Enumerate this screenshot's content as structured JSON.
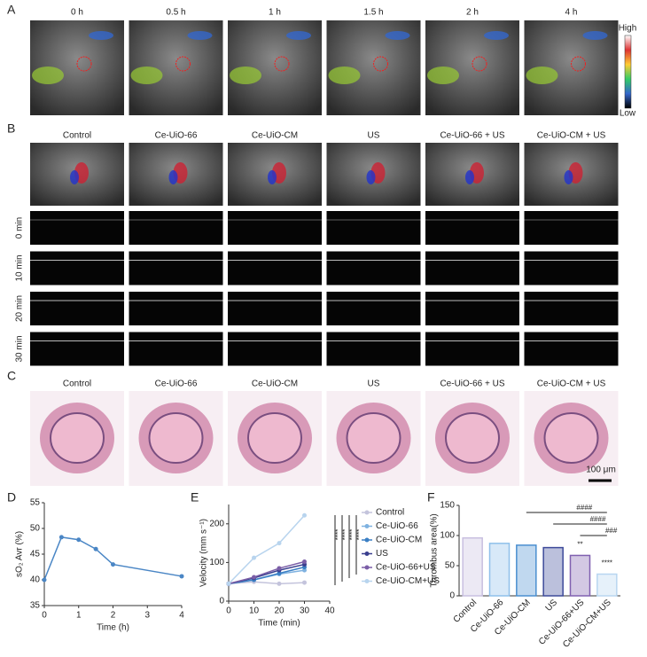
{
  "panels": {
    "a": {
      "label": "A",
      "times": [
        "0 h",
        "0.5 h",
        "1 h",
        "1.5 h",
        "2 h",
        "4 h"
      ],
      "colorbar_high": "High",
      "colorbar_low": "Low"
    },
    "b": {
      "label": "B",
      "groups": [
        "Control",
        "Ce-UiO-66",
        "Ce-UiO-CM",
        "US",
        "Ce-UiO-66 + US",
        "Ce-UiO-CM + US"
      ],
      "rows": [
        "0 min",
        "10 min",
        "20 min",
        "30 min"
      ]
    },
    "c": {
      "label": "C",
      "groups": [
        "Control",
        "Ce-UiO-66",
        "Ce-UiO-CM",
        "US",
        "Ce-UiO-66 + US",
        "Ce-UiO-CM + US"
      ],
      "scale_bar": "100 μm"
    },
    "d": {
      "label": "D"
    },
    "e": {
      "label": "E"
    },
    "f": {
      "label": "F"
    }
  },
  "chart_data": [
    {
      "type": "line",
      "ylabel": "sO₂ Avr (%)",
      "xlabel": "Time (h)",
      "x": [
        0,
        0.5,
        1,
        1.5,
        2,
        4
      ],
      "values": [
        40,
        48.3,
        47.8,
        46,
        43,
        40.7
      ],
      "color": "#4a86c5",
      "xlim": [
        0,
        4
      ],
      "xticks": [
        0,
        1,
        2,
        3,
        4
      ],
      "ylim": [
        35,
        55
      ],
      "yticks": [
        35,
        40,
        45,
        50,
        55
      ]
    },
    {
      "type": "line",
      "ylabel": "Velocity (mm s⁻¹)",
      "xlabel": "Time (min)",
      "x": [
        0,
        10,
        20,
        30
      ],
      "xlim": [
        0,
        40
      ],
      "xticks": [
        0,
        10,
        20,
        30,
        40
      ],
      "ylim": [
        0,
        250
      ],
      "yticks": [
        0,
        100,
        200
      ],
      "series": [
        {
          "name": "Control",
          "color": "#c4c4dc",
          "values": [
            45,
            50,
            45,
            48
          ]
        },
        {
          "name": "Ce-UiO-66",
          "color": "#7fb2e0",
          "values": [
            45,
            55,
            70,
            80
          ]
        },
        {
          "name": "Ce-UiO-CM",
          "color": "#3b7fc4",
          "values": [
            45,
            55,
            72,
            88
          ]
        },
        {
          "name": "US",
          "color": "#3a3f8f",
          "values": [
            45,
            60,
            80,
            95
          ]
        },
        {
          "name": "Ce-UiO-66+US",
          "color": "#7b5ea7",
          "values": [
            45,
            62,
            85,
            102
          ]
        },
        {
          "name": "Ce-UiO-CM+US",
          "color": "#b8d4ee",
          "values": [
            45,
            112,
            150,
            222
          ]
        }
      ],
      "annotations": [
        "****",
        "****",
        "****",
        "****"
      ]
    },
    {
      "type": "bar",
      "ylabel": "Thrombus area(%)",
      "categories": [
        "Control",
        "Ce-UiO-66",
        "Ce-UiO-CM",
        "US",
        "Ce-UiO-66+US",
        "Ce-UiO-CM+US"
      ],
      "values": [
        96,
        87,
        84,
        80,
        67,
        36
      ],
      "colors": [
        "#c8bfe0",
        "#8fc0ea",
        "#4a8fd0",
        "#3d4a9a",
        "#8060b0",
        "#b8d6f0"
      ],
      "ylim": [
        0,
        150
      ],
      "yticks": [
        0,
        50,
        100,
        150
      ],
      "value_annotations": [
        "**",
        "****"
      ],
      "bracket_annotations": [
        "####",
        "####",
        "###"
      ]
    }
  ]
}
